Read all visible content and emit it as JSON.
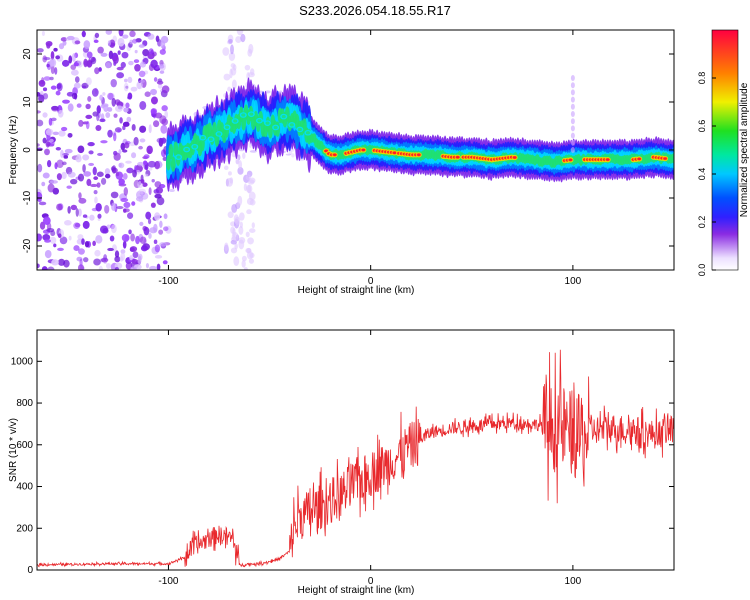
{
  "title": "S233.2026.054.18.55.R17",
  "chart_data": [
    {
      "type": "heatmap",
      "xlabel": "Height of straight line (km)",
      "ylabel": "Frequency (Hz)",
      "xlim": [
        -165,
        150
      ],
      "ylim": [
        -25,
        25
      ],
      "xticks": [
        -100,
        0,
        100
      ],
      "yticks": [
        -20,
        -10,
        0,
        10,
        20
      ],
      "grid": false,
      "ridge": {
        "x": [
          -100,
          -95,
          -90,
          -85,
          -80,
          -75,
          -70,
          -65,
          -60,
          -55,
          -50,
          -45,
          -40,
          -35,
          -30,
          -25,
          -20,
          -15,
          -10,
          -5,
          0,
          10,
          20,
          30,
          40,
          50,
          60,
          70,
          80,
          90,
          100,
          110,
          120,
          130,
          140,
          150
        ],
        "y": [
          -2,
          -1,
          0,
          1,
          3,
          4,
          5,
          6,
          7,
          6,
          5,
          6,
          6,
          5,
          3,
          1,
          -1,
          -1,
          -0.5,
          0,
          0,
          -0.5,
          -1,
          -1,
          -1.5,
          -1.5,
          -2,
          -1.5,
          -2,
          -2.5,
          -2,
          -2,
          -2,
          -2,
          -1.5,
          -2
        ]
      },
      "colorbar": {
        "label": "Normalized spectral amplitude",
        "range": [
          0,
          1
        ],
        "ticks": [
          0.0,
          0.2,
          0.4,
          0.6,
          0.8
        ]
      }
    },
    {
      "type": "line",
      "xlabel": "Height of straight line (km)",
      "ylabel": "SNR (10 * v/v)",
      "xlim": [
        -165,
        150
      ],
      "ylim": [
        0,
        1150
      ],
      "xticks": [
        -100,
        0,
        100
      ],
      "yticks": [
        0,
        200,
        400,
        600,
        800,
        1000
      ],
      "grid": false,
      "series": [
        {
          "name": "SNR",
          "color": "#e8282c",
          "x": [
            -165,
            -130,
            -100,
            -92,
            -88,
            -84,
            -80,
            -76,
            -72,
            -68,
            -65,
            -60,
            -55,
            -50,
            -45,
            -40,
            -38,
            -35,
            -30,
            -25,
            -20,
            -15,
            -10,
            -5,
            0,
            5,
            10,
            15,
            20,
            25,
            30,
            40,
            50,
            60,
            70,
            80,
            90,
            95,
            100,
            103,
            106,
            110,
            120,
            130,
            140,
            145,
            150
          ],
          "y": [
            25,
            30,
            30,
            60,
            110,
            130,
            150,
            170,
            165,
            150,
            25,
            28,
            30,
            40,
            55,
            90,
            200,
            250,
            280,
            300,
            330,
            360,
            400,
            430,
            460,
            490,
            520,
            560,
            600,
            630,
            660,
            680,
            690,
            700,
            705,
            700,
            690,
            680,
            650,
            630,
            640,
            670,
            680,
            670,
            650,
            660,
            680
          ]
        }
      ]
    }
  ]
}
